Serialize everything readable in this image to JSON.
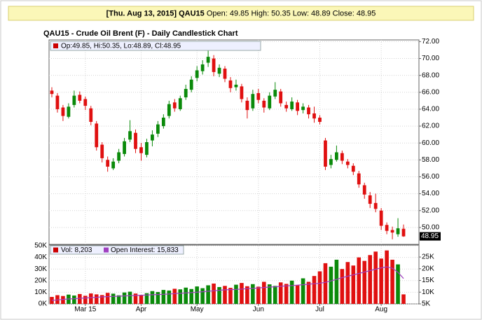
{
  "chart_data": {
    "type": "candlestick",
    "header_bold": "[Thu. Aug 13, 2015] QAU15",
    "header_text": "Open: 49.85 High: 50.35 Low: 48.89 Close: 48.95",
    "title": "QAU15 - Crude Oil Brent (F) - Daily Candlestick Chart",
    "price_legend": "Op:49.85, Hi:50.35, Lo:48.89, Cl:48.95",
    "volume_legend": "Vol: 8,203",
    "oi_legend": "Open Interest: 15,833",
    "last_value": 48.95,
    "up_color": "#0a8a0a",
    "down_color": "#e01010",
    "oi_color": "#a040c0",
    "legend_color": "#cc0000",
    "grid": true,
    "categories": [
      null,
      null,
      null,
      null,
      null,
      null,
      "Mar 15",
      null,
      null,
      null,
      null,
      null,
      null,
      null,
      null,
      null,
      "Apr",
      null,
      null,
      null,
      null,
      null,
      null,
      null,
      null,
      null,
      "May",
      null,
      null,
      null,
      null,
      null,
      null,
      null,
      null,
      null,
      null,
      "Jun",
      null,
      null,
      null,
      null,
      null,
      null,
      null,
      null,
      null,
      null,
      "Jul",
      null,
      null,
      null,
      null,
      null,
      null,
      null,
      null,
      null,
      null,
      "Aug",
      null,
      null,
      null,
      null
    ],
    "ohlc": [
      [
        66.2,
        66.6,
        65.4,
        65.8
      ],
      [
        65.6,
        65.9,
        63.6,
        64.0
      ],
      [
        64.2,
        64.5,
        62.6,
        63.2
      ],
      [
        63.1,
        64.7,
        62.9,
        64.3
      ],
      [
        64.5,
        66.2,
        64.2,
        65.6
      ],
      [
        65.7,
        66.1,
        64.7,
        65.0
      ],
      [
        65.2,
        65.5,
        63.9,
        64.4
      ],
      [
        64.1,
        64.4,
        62.1,
        62.5
      ],
      [
        62.3,
        62.6,
        59.1,
        59.5
      ],
      [
        59.8,
        60.1,
        57.7,
        58.2
      ],
      [
        58.0,
        58.4,
        56.6,
        57.2
      ],
      [
        57.0,
        58.2,
        56.8,
        57.8
      ],
      [
        57.9,
        59.3,
        57.6,
        58.9
      ],
      [
        58.7,
        60.6,
        58.4,
        60.2
      ],
      [
        60.4,
        62.7,
        60.1,
        61.4
      ],
      [
        61.2,
        61.6,
        58.8,
        59.3
      ],
      [
        59.5,
        60.0,
        57.9,
        58.8
      ],
      [
        58.6,
        60.5,
        58.3,
        60.1
      ],
      [
        60.3,
        61.5,
        59.6,
        61.0
      ],
      [
        61.1,
        62.6,
        60.7,
        62.2
      ],
      [
        62.0,
        63.4,
        61.7,
        63.0
      ],
      [
        63.2,
        65.0,
        62.9,
        64.6
      ],
      [
        64.8,
        65.2,
        63.7,
        64.1
      ],
      [
        64.0,
        65.6,
        63.8,
        65.3
      ],
      [
        65.4,
        66.9,
        65.1,
        66.4
      ],
      [
        66.3,
        67.9,
        66.0,
        67.5
      ],
      [
        67.7,
        69.1,
        67.3,
        68.6
      ],
      [
        68.5,
        69.8,
        68.1,
        69.3
      ],
      [
        69.5,
        71.2,
        69.0,
        70.2
      ],
      [
        70.0,
        70.4,
        67.9,
        68.4
      ],
      [
        68.2,
        69.3,
        67.8,
        68.9
      ],
      [
        68.8,
        69.1,
        67.2,
        67.6
      ],
      [
        67.4,
        67.8,
        66.0,
        66.5
      ],
      [
        66.6,
        67.5,
        66.2,
        66.9
      ],
      [
        66.7,
        67.0,
        64.8,
        65.2
      ],
      [
        65.0,
        65.4,
        62.9,
        63.9
      ],
      [
        64.1,
        66.3,
        63.8,
        65.8
      ],
      [
        65.9,
        66.4,
        64.7,
        65.1
      ],
      [
        65.0,
        65.3,
        63.6,
        64.2
      ],
      [
        64.1,
        66.0,
        63.9,
        65.6
      ],
      [
        65.5,
        67.2,
        65.2,
        66.3
      ],
      [
        66.1,
        66.4,
        64.3,
        64.7
      ],
      [
        64.5,
        64.9,
        63.7,
        64.1
      ],
      [
        64.0,
        65.4,
        63.8,
        64.9
      ],
      [
        64.8,
        65.1,
        63.3,
        63.8
      ],
      [
        63.9,
        64.7,
        63.5,
        64.3
      ],
      [
        64.2,
        64.5,
        62.9,
        63.4
      ],
      [
        63.5,
        64.3,
        62.4,
        62.9
      ],
      [
        63.0,
        63.3,
        62.2,
        62.5
      ],
      [
        60.3,
        60.6,
        56.8,
        57.2
      ],
      [
        57.4,
        58.6,
        57.0,
        58.1
      ],
      [
        58.0,
        59.7,
        57.8,
        58.9
      ],
      [
        58.8,
        59.1,
        57.5,
        57.9
      ],
      [
        57.8,
        58.1,
        57.0,
        57.4
      ],
      [
        57.3,
        57.6,
        56.2,
        56.6
      ],
      [
        56.4,
        56.7,
        54.7,
        55.1
      ],
      [
        55.0,
        55.3,
        53.4,
        53.9
      ],
      [
        53.8,
        54.2,
        52.3,
        52.8
      ],
      [
        52.9,
        54.0,
        51.8,
        52.2
      ],
      [
        52.0,
        52.3,
        49.7,
        50.2
      ],
      [
        50.3,
        50.6,
        49.2,
        49.6
      ],
      [
        49.7,
        50.1,
        48.6,
        49.4
      ],
      [
        49.2,
        51.1,
        48.9,
        49.9
      ],
      [
        49.85,
        50.35,
        48.89,
        48.95
      ]
    ],
    "volume": [
      6000,
      7500,
      6800,
      8000,
      7200,
      8500,
      7000,
      9000,
      8200,
      7600,
      9500,
      8800,
      7400,
      9800,
      10500,
      8900,
      7800,
      9200,
      11000,
      10200,
      12000,
      11500,
      13000,
      12500,
      14000,
      12800,
      15000,
      13500,
      16000,
      17500,
      14500,
      15500,
      13800,
      16500,
      18000,
      15200,
      17000,
      14800,
      19000,
      16800,
      15500,
      18500,
      17200,
      20000,
      16000,
      22000,
      19000,
      24000,
      28000,
      35000,
      32000,
      38000,
      30000,
      36000,
      33000,
      40000,
      37000,
      42000,
      45000,
      39000,
      46000,
      38000,
      34000,
      8203
    ],
    "open_interest": [
      6500,
      6700,
      6900,
      7100,
      7200,
      7400,
      7500,
      7700,
      7800,
      8000,
      8100,
      8200,
      8300,
      8400,
      8500,
      8600,
      8700,
      8800,
      8900,
      9000,
      9100,
      9200,
      9400,
      9500,
      9700,
      9800,
      10000,
      10200,
      10400,
      10600,
      10800,
      11000,
      11100,
      11200,
      11300,
      11500,
      11600,
      11800,
      12000,
      12200,
      12300,
      12500,
      12700,
      12800,
      13000,
      13200,
      13400,
      13600,
      13800,
      14200,
      14800,
      15500,
      16200,
      16800,
      17400,
      18000,
      18600,
      19200,
      19800,
      20400,
      20800,
      20200,
      18500,
      15833
    ],
    "ylim": [
      48,
      72.2
    ],
    "yticks": [
      {
        "value": 50,
        "label": "50.00"
      },
      {
        "value": 52,
        "label": "52.00"
      },
      {
        "value": 54,
        "label": "54.00"
      },
      {
        "value": 56,
        "label": "56.00"
      },
      {
        "value": 58,
        "label": "58.00"
      },
      {
        "value": 60,
        "label": "60.00"
      },
      {
        "value": 62,
        "label": "62.00"
      },
      {
        "value": 64,
        "label": "64.00"
      },
      {
        "value": 66,
        "label": "66.00"
      },
      {
        "value": 68,
        "label": "68.00"
      },
      {
        "value": 70,
        "label": "70.00"
      },
      {
        "value": 72,
        "label": "72.00"
      }
    ],
    "volume_ylim": [
      0,
      50000
    ],
    "volume_yticks": [
      {
        "value": 0,
        "label": "0K"
      },
      {
        "value": 10000,
        "label": "10K"
      },
      {
        "value": 20000,
        "label": "20K"
      },
      {
        "value": 30000,
        "label": "30K"
      },
      {
        "value": 40000,
        "label": "40K"
      },
      {
        "value": 50000,
        "label": "50K"
      }
    ],
    "y2lim": [
      5000,
      29800
    ],
    "y2ticks": [
      {
        "value": 5000,
        "label": "5K"
      },
      {
        "value": 10000,
        "label": "10K"
      },
      {
        "value": 15000,
        "label": "15K"
      },
      {
        "value": 20000,
        "label": "20K"
      },
      {
        "value": 25000,
        "label": "25K"
      }
    ]
  }
}
